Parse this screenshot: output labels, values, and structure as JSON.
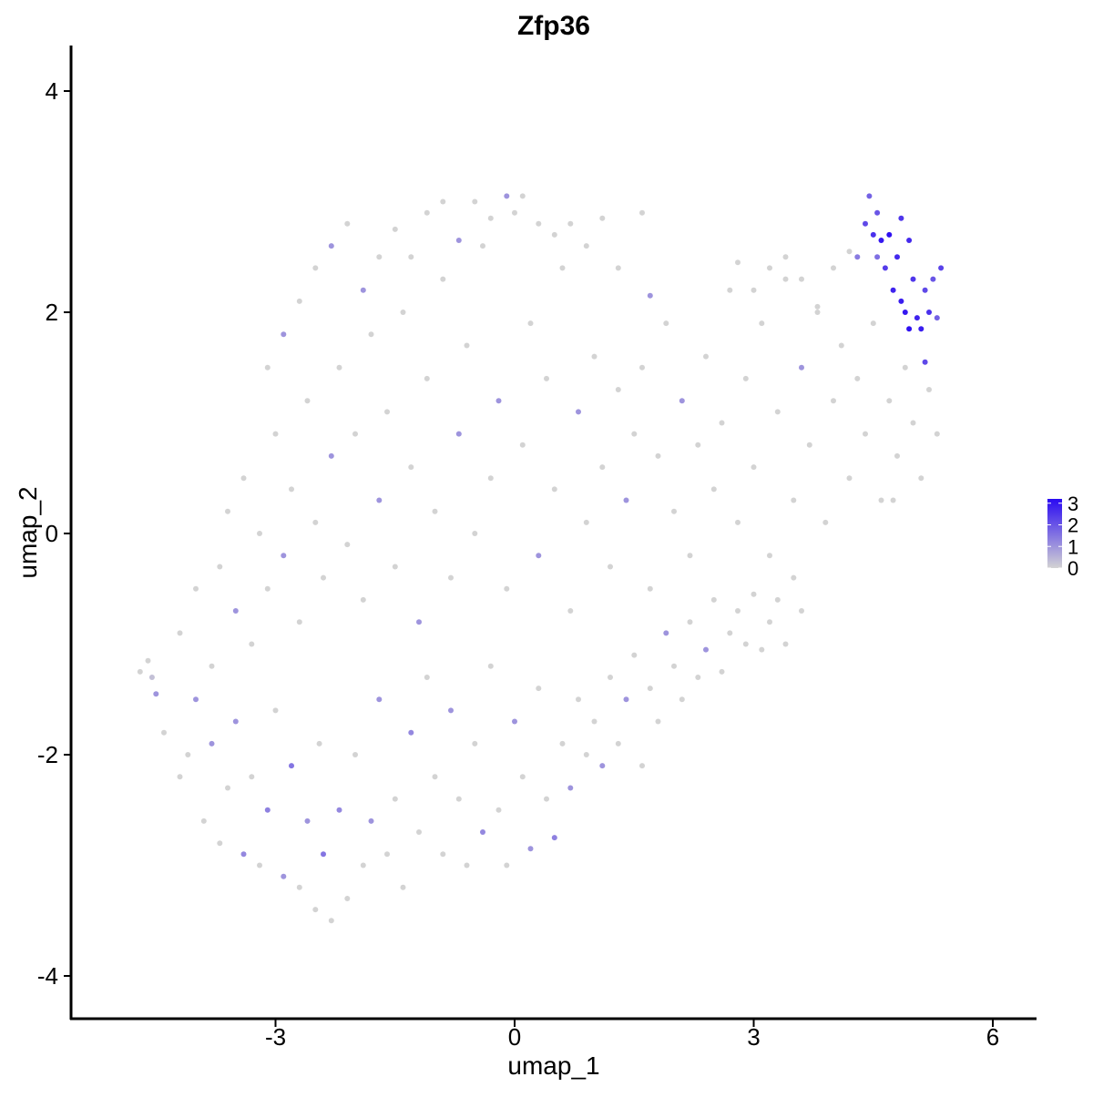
{
  "chart_data": {
    "type": "scatter",
    "title": "Zfp36",
    "xlabel": "umap_1",
    "ylabel": "umap_2",
    "xlim": [
      -5.6,
      6.5
    ],
    "ylim": [
      -4.4,
      4.4
    ],
    "x_ticks": [
      "-3",
      "0",
      "3",
      "6"
    ],
    "y_ticks": [
      "-4",
      "-2",
      "0",
      "2",
      "4"
    ],
    "grid": false,
    "legend_position": "right",
    "colorbar": {
      "ticks": [
        "0",
        "1",
        "2",
        "3"
      ],
      "range": [
        0,
        3.2
      ],
      "low_color": "#d3d3d3",
      "high_color": "#2a0af2"
    },
    "points_note": "approximate sample of cells with expression level",
    "points": [
      [
        -4.7,
        -1.25,
        0.0
      ],
      [
        -4.6,
        -1.15,
        0.0
      ],
      [
        -4.55,
        -1.3,
        0.3
      ],
      [
        -4.5,
        -1.45,
        1.0
      ],
      [
        -4.4,
        -1.8,
        0.0
      ],
      [
        -4.2,
        -2.2,
        0.0
      ],
      [
        -4.1,
        -2.0,
        0.0
      ],
      [
        -4.0,
        -1.5,
        1.0
      ],
      [
        -3.9,
        -2.6,
        0.0
      ],
      [
        -3.8,
        -1.9,
        1.0
      ],
      [
        -3.7,
        -2.8,
        0.0
      ],
      [
        -3.6,
        -2.3,
        0.0
      ],
      [
        -3.5,
        -1.7,
        1.0
      ],
      [
        -3.4,
        -2.9,
        1.2
      ],
      [
        -3.3,
        -2.2,
        0.0
      ],
      [
        -3.2,
        -3.0,
        0.0
      ],
      [
        -3.1,
        -2.5,
        1.3
      ],
      [
        -3.0,
        -1.6,
        0.0
      ],
      [
        -2.9,
        -3.1,
        1.0
      ],
      [
        -2.8,
        -2.1,
        1.5
      ],
      [
        -2.7,
        -3.2,
        0.0
      ],
      [
        -2.6,
        -2.6,
        1.0
      ],
      [
        -2.5,
        -3.4,
        0.0
      ],
      [
        -2.45,
        -1.9,
        0.0
      ],
      [
        -2.4,
        -2.9,
        1.5
      ],
      [
        -2.3,
        -3.5,
        0.0
      ],
      [
        -2.2,
        -2.5,
        1.2
      ],
      [
        -2.1,
        -3.3,
        0.0
      ],
      [
        -2.0,
        -2.0,
        0.0
      ],
      [
        -1.9,
        -3.0,
        0.0
      ],
      [
        -1.8,
        -2.6,
        1.0
      ],
      [
        -1.7,
        -1.5,
        1.0
      ],
      [
        -1.6,
        -2.9,
        0.0
      ],
      [
        -1.5,
        -2.4,
        0.0
      ],
      [
        -1.4,
        -3.2,
        0.0
      ],
      [
        -1.3,
        -1.8,
        1.2
      ],
      [
        -1.2,
        -2.7,
        0.0
      ],
      [
        -1.1,
        -1.3,
        0.0
      ],
      [
        -1.0,
        -2.2,
        0.0
      ],
      [
        -0.9,
        -2.9,
        0.0
      ],
      [
        -0.8,
        -1.6,
        1.0
      ],
      [
        -0.7,
        -2.4,
        0.0
      ],
      [
        -0.6,
        -3.0,
        0.0
      ],
      [
        -0.5,
        -1.9,
        0.0
      ],
      [
        -0.4,
        -2.7,
        1.2
      ],
      [
        -0.3,
        -1.2,
        0.0
      ],
      [
        -0.2,
        -2.5,
        0.0
      ],
      [
        -0.1,
        -3.0,
        0.0
      ],
      [
        0.0,
        -1.7,
        1.0
      ],
      [
        0.1,
        -2.2,
        0.0
      ],
      [
        0.2,
        -2.85,
        1.0
      ],
      [
        0.3,
        -1.4,
        0.0
      ],
      [
        0.4,
        -2.4,
        0.0
      ],
      [
        0.5,
        -2.75,
        1.3
      ],
      [
        0.6,
        -1.9,
        0.0
      ],
      [
        0.7,
        -2.3,
        1.0
      ],
      [
        0.8,
        -1.5,
        0.0
      ],
      [
        0.9,
        -2.0,
        0.0
      ],
      [
        1.0,
        -1.7,
        0.0
      ],
      [
        1.1,
        -2.1,
        1.0
      ],
      [
        1.2,
        -1.3,
        0.0
      ],
      [
        1.3,
        -1.9,
        0.0
      ],
      [
        1.4,
        -1.5,
        1.0
      ],
      [
        1.5,
        -1.1,
        0.0
      ],
      [
        1.6,
        -2.1,
        0.0
      ],
      [
        1.7,
        -1.4,
        0.0
      ],
      [
        1.8,
        -1.7,
        0.0
      ],
      [
        1.9,
        -0.9,
        1.0
      ],
      [
        2.0,
        -1.2,
        0.0
      ],
      [
        2.1,
        -1.5,
        0.0
      ],
      [
        2.2,
        -0.8,
        0.0
      ],
      [
        2.3,
        -1.3,
        0.0
      ],
      [
        2.4,
        -1.05,
        1.0
      ],
      [
        2.5,
        -0.6,
        0.0
      ],
      [
        2.6,
        -1.25,
        0.0
      ],
      [
        2.7,
        -0.9,
        0.0
      ],
      [
        2.8,
        -0.7,
        0.0
      ],
      [
        2.9,
        -1.0,
        0.0
      ],
      [
        3.0,
        -0.55,
        0.0
      ],
      [
        3.1,
        -1.05,
        0.0
      ],
      [
        3.2,
        -0.8,
        0.0
      ],
      [
        3.3,
        -0.6,
        0.0
      ],
      [
        3.4,
        -1.0,
        0.0
      ],
      [
        3.5,
        -0.4,
        0.0
      ],
      [
        3.6,
        -0.7,
        0.0
      ],
      [
        -4.2,
        -0.9,
        0.0
      ],
      [
        -4.0,
        -0.5,
        0.0
      ],
      [
        -3.8,
        -1.2,
        0.0
      ],
      [
        -3.7,
        -0.3,
        0.0
      ],
      [
        -3.6,
        0.2,
        0.0
      ],
      [
        -3.5,
        -0.7,
        1.0
      ],
      [
        -3.4,
        0.5,
        0.0
      ],
      [
        -3.3,
        -1.0,
        0.0
      ],
      [
        -3.2,
        0.0,
        0.0
      ],
      [
        -3.1,
        -0.5,
        0.0
      ],
      [
        -3.0,
        0.9,
        0.0
      ],
      [
        -2.9,
        -0.2,
        1.0
      ],
      [
        -2.8,
        0.4,
        0.0
      ],
      [
        -2.7,
        -0.8,
        0.0
      ],
      [
        -2.6,
        1.2,
        0.0
      ],
      [
        -2.5,
        0.1,
        0.0
      ],
      [
        -2.4,
        -0.4,
        0.0
      ],
      [
        -2.3,
        0.7,
        1.0
      ],
      [
        -2.2,
        1.5,
        0.0
      ],
      [
        -2.1,
        -0.1,
        0.0
      ],
      [
        -2.0,
        0.9,
        0.0
      ],
      [
        -1.9,
        -0.6,
        0.0
      ],
      [
        -1.8,
        1.8,
        0.0
      ],
      [
        -1.7,
        0.3,
        1.0
      ],
      [
        -1.6,
        1.1,
        0.0
      ],
      [
        -1.5,
        -0.3,
        0.0
      ],
      [
        -1.4,
        2.0,
        0.0
      ],
      [
        -1.3,
        0.6,
        0.0
      ],
      [
        -1.2,
        -0.8,
        1.0
      ],
      [
        -1.1,
        1.4,
        0.0
      ],
      [
        -1.0,
        0.2,
        0.0
      ],
      [
        -0.9,
        2.3,
        0.0
      ],
      [
        -0.8,
        -0.4,
        0.0
      ],
      [
        -0.7,
        0.9,
        1.0
      ],
      [
        -0.6,
        1.7,
        0.0
      ],
      [
        -0.5,
        0.0,
        0.0
      ],
      [
        -0.4,
        2.6,
        0.0
      ],
      [
        -0.3,
        0.5,
        0.0
      ],
      [
        -0.2,
        1.2,
        1.0
      ],
      [
        -0.1,
        -0.5,
        0.0
      ],
      [
        0.0,
        2.9,
        0.0
      ],
      [
        0.1,
        0.8,
        0.0
      ],
      [
        0.2,
        1.9,
        0.0
      ],
      [
        0.3,
        -0.2,
        1.0
      ],
      [
        0.4,
        1.4,
        0.0
      ],
      [
        0.5,
        0.4,
        0.0
      ],
      [
        0.6,
        2.4,
        0.0
      ],
      [
        0.7,
        -0.7,
        0.0
      ],
      [
        0.8,
        1.1,
        1.0
      ],
      [
        0.9,
        0.1,
        0.0
      ],
      [
        1.0,
        1.6,
        0.0
      ],
      [
        1.1,
        0.6,
        0.0
      ],
      [
        1.2,
        -0.3,
        0.0
      ],
      [
        1.3,
        1.3,
        0.0
      ],
      [
        1.4,
        0.3,
        1.0
      ],
      [
        1.5,
        0.9,
        0.0
      ],
      [
        1.6,
        1.5,
        0.0
      ],
      [
        1.7,
        -0.5,
        0.0
      ],
      [
        1.8,
        0.7,
        0.0
      ],
      [
        1.9,
        1.9,
        0.0
      ],
      [
        2.0,
        0.2,
        0.0
      ],
      [
        2.1,
        1.2,
        1.0
      ],
      [
        2.2,
        -0.2,
        0.0
      ],
      [
        2.3,
        0.8,
        0.0
      ],
      [
        2.4,
        1.6,
        0.0
      ],
      [
        2.5,
        0.4,
        0.0
      ],
      [
        2.6,
        1.0,
        0.0
      ],
      [
        2.7,
        2.2,
        0.0
      ],
      [
        2.8,
        0.1,
        0.0
      ],
      [
        2.9,
        1.4,
        0.0
      ],
      [
        3.0,
        0.6,
        0.0
      ],
      [
        3.1,
        1.9,
        0.0
      ],
      [
        3.2,
        -0.2,
        0.0
      ],
      [
        3.3,
        1.1,
        0.0
      ],
      [
        3.4,
        2.3,
        0.0
      ],
      [
        3.5,
        0.3,
        0.0
      ],
      [
        3.6,
        1.5,
        1.0
      ],
      [
        3.7,
        0.8,
        0.0
      ],
      [
        3.8,
        2.0,
        0.0
      ],
      [
        3.9,
        0.1,
        0.0
      ],
      [
        4.0,
        1.2,
        0.0
      ],
      [
        4.1,
        1.7,
        0.0
      ],
      [
        4.2,
        0.5,
        0.0
      ],
      [
        4.3,
        1.4,
        0.0
      ],
      [
        4.4,
        0.9,
        0.0
      ],
      [
        4.5,
        1.9,
        0.0
      ],
      [
        4.6,
        0.3,
        0.0
      ],
      [
        4.7,
        1.2,
        0.0
      ],
      [
        4.8,
        0.7,
        0.0
      ],
      [
        4.9,
        1.5,
        0.0
      ],
      [
        5.0,
        1.0,
        0.0
      ],
      [
        5.1,
        0.5,
        0.0
      ],
      [
        5.2,
        1.3,
        0.0
      ],
      [
        5.3,
        0.9,
        0.0
      ],
      [
        4.75,
        0.3,
        0.0
      ],
      [
        -3.1,
        1.5,
        0.0
      ],
      [
        -2.9,
        1.8,
        1.0
      ],
      [
        -2.7,
        2.1,
        0.0
      ],
      [
        -2.5,
        2.4,
        0.0
      ],
      [
        -2.3,
        2.6,
        1.0
      ],
      [
        -2.1,
        2.8,
        0.0
      ],
      [
        -1.9,
        2.2,
        1.0
      ],
      [
        -1.7,
        2.5,
        0.0
      ],
      [
        -1.5,
        2.75,
        0.0
      ],
      [
        -1.3,
        2.5,
        0.0
      ],
      [
        -1.1,
        2.9,
        0.0
      ],
      [
        -0.9,
        3.0,
        0.0
      ],
      [
        -0.7,
        2.65,
        1.0
      ],
      [
        -0.5,
        3.0,
        0.0
      ],
      [
        -0.3,
        2.85,
        0.0
      ],
      [
        -0.1,
        3.05,
        1.0
      ],
      [
        0.1,
        3.05,
        0.0
      ],
      [
        0.3,
        2.8,
        0.0
      ],
      [
        0.5,
        2.7,
        0.0
      ],
      [
        0.7,
        2.8,
        0.0
      ],
      [
        0.9,
        2.6,
        0.0
      ],
      [
        1.1,
        2.85,
        0.0
      ],
      [
        1.3,
        2.4,
        0.0
      ],
      [
        1.6,
        2.9,
        0.0
      ],
      [
        1.7,
        2.15,
        1.0
      ],
      [
        2.8,
        2.45,
        0.0
      ],
      [
        3.0,
        2.2,
        0.0
      ],
      [
        3.2,
        2.4,
        0.0
      ],
      [
        3.4,
        2.5,
        0.0
      ],
      [
        3.6,
        2.3,
        0.0
      ],
      [
        3.8,
        2.05,
        0.0
      ],
      [
        4.0,
        2.4,
        0.0
      ],
      [
        4.2,
        2.55,
        0.0
      ],
      [
        4.4,
        2.8,
        2.2
      ],
      [
        4.45,
        3.05,
        1.8
      ],
      [
        4.5,
        2.7,
        2.6
      ],
      [
        4.55,
        2.9,
        2.0
      ],
      [
        4.6,
        2.65,
        3.0
      ],
      [
        4.65,
        2.4,
        2.4
      ],
      [
        4.7,
        2.7,
        3.1
      ],
      [
        4.75,
        2.2,
        2.8
      ],
      [
        4.8,
        2.5,
        2.7
      ],
      [
        4.85,
        2.1,
        2.9
      ],
      [
        4.9,
        2.0,
        3.0
      ],
      [
        4.95,
        1.85,
        3.1
      ],
      [
        5.0,
        2.3,
        2.5
      ],
      [
        5.05,
        1.95,
        2.8
      ],
      [
        5.1,
        1.85,
        2.9
      ],
      [
        5.15,
        2.2,
        2.2
      ],
      [
        5.2,
        2.0,
        2.6
      ],
      [
        5.25,
        2.3,
        2.0
      ],
      [
        5.3,
        1.95,
        1.8
      ],
      [
        5.35,
        2.4,
        2.3
      ],
      [
        4.85,
        2.85,
        2.5
      ],
      [
        4.55,
        2.5,
        1.6
      ],
      [
        4.3,
        2.5,
        1.4
      ],
      [
        5.15,
        1.55,
        2.2
      ],
      [
        4.95,
        2.65,
        2.7
      ]
    ]
  }
}
